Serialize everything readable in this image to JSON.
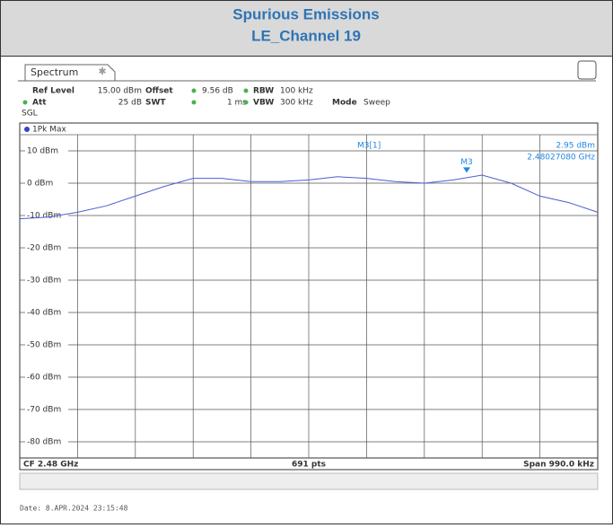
{
  "header": {
    "title": "Spurious Emissions",
    "subtitle": "LE_Channel 19"
  },
  "instrument": {
    "tab": "Spectrum",
    "row1": [
      "Ref Level",
      "15.00 dBm",
      "Offset",
      "9.56 dB",
      "RBW",
      "100 kHz"
    ],
    "row2": [
      "Att",
      "25 dB",
      "SWT",
      "1 ms",
      "VBW",
      "300 kHz",
      "Mode",
      "Sweep"
    ],
    "sgl": "SGL"
  },
  "chart_data": {
    "type": "line",
    "trace_name": "1Pk Max",
    "series": [
      {
        "name": "1Pk Max",
        "color": "#4a5fd0",
        "values": [
          -11,
          -10.5,
          -9,
          -7,
          -4,
          -1,
          1.5,
          1.5,
          0.5,
          0.5,
          1,
          2,
          1.5,
          0.5,
          0,
          1,
          2.5,
          0,
          -4,
          -6,
          -9
        ]
      }
    ],
    "ylim": [
      -85,
      15
    ],
    "yticks": [
      {
        "value": 10,
        "label": "10 dBm"
      },
      {
        "value": 0,
        "label": "0 dBm"
      },
      {
        "value": -10,
        "label": "-10 dBm"
      },
      {
        "value": -20,
        "label": "-20 dBm"
      },
      {
        "value": -30,
        "label": "-30 dBm"
      },
      {
        "value": -40,
        "label": "-40 dBm"
      },
      {
        "value": -50,
        "label": "-50 dBm"
      },
      {
        "value": -60,
        "label": "-60 dBm"
      },
      {
        "value": -70,
        "label": "-70 dBm"
      },
      {
        "value": -80,
        "label": "-80 dBm"
      }
    ],
    "grid": true,
    "marker": {
      "name": "M3",
      "label": "M3[1]",
      "value": 2.95,
      "value_label": "2.95 dBm",
      "frequency": "2.48027080 GHz"
    },
    "footer": [
      "CF 2.48 GHz",
      "691 pts",
      "Span 990.0 kHz"
    ]
  },
  "date": "Date: 8.APR.2024 23:15:48"
}
